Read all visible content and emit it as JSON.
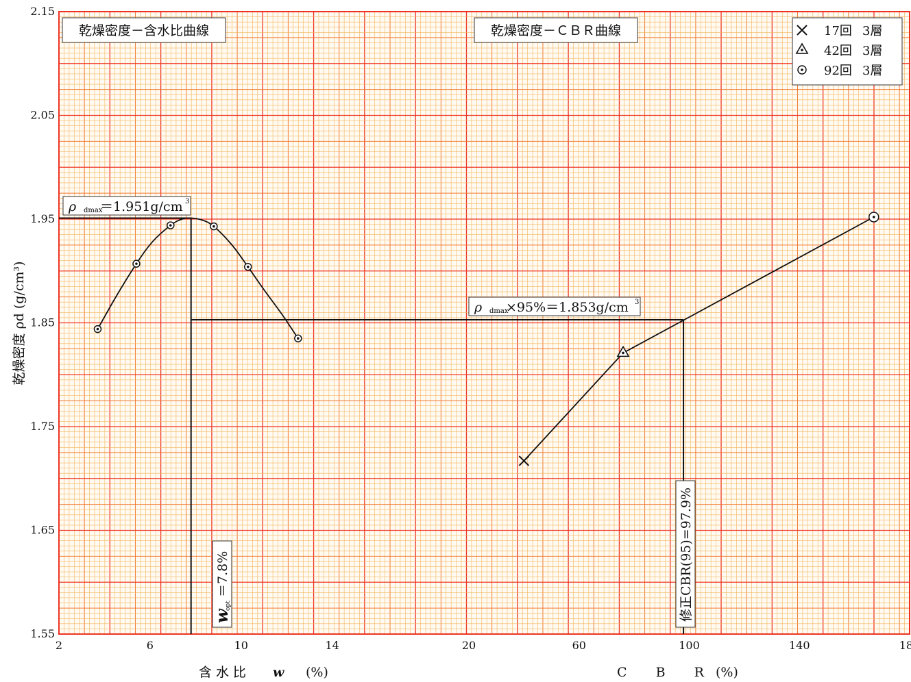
{
  "chart_data": {
    "type": "line",
    "y_axis": {
      "label": "乾燥密度 ρd (g/cm³)",
      "range": [
        1.55,
        2.15
      ],
      "tick_labels": [
        "2.15",
        "2.05",
        "1.95",
        "1.85",
        "1.75",
        "1.65",
        "1.55"
      ],
      "ticks": [
        2.15,
        2.05,
        1.95,
        1.85,
        1.75,
        1.65,
        1.55
      ]
    },
    "x_axis_moisture": {
      "label": "含水比",
      "label_symbol": "w",
      "unit": "(%)",
      "range": [
        2,
        20
      ],
      "tick_labels": [
        "2",
        "6",
        "10",
        "14",
        "20"
      ],
      "ticks": [
        2,
        6,
        10,
        14,
        20
      ]
    },
    "x_axis_cbr": {
      "label": "C B R",
      "unit": "(%)",
      "range": [
        20,
        180
      ],
      "tick_labels": [
        "60",
        "100",
        "140",
        "180"
      ],
      "ticks": [
        60,
        100,
        140,
        180
      ]
    },
    "grid": true,
    "compaction_curve": {
      "title": "乾燥密度－含水比曲線",
      "marker": "dotted-circle",
      "points": [
        {
          "w": 3.7,
          "rho": 1.844
        },
        {
          "w": 5.4,
          "rho": 1.907
        },
        {
          "w": 6.9,
          "rho": 1.944
        },
        {
          "w": 8.8,
          "rho": 1.943
        },
        {
          "w": 10.3,
          "rho": 1.904
        },
        {
          "w": 12.5,
          "rho": 1.835
        }
      ],
      "smooth_curve": [
        [
          3.7,
          1.844
        ],
        [
          4.5,
          1.875
        ],
        [
          5.4,
          1.907
        ],
        [
          6.1,
          1.928
        ],
        [
          6.9,
          1.944
        ],
        [
          7.4,
          1.95
        ],
        [
          7.8,
          1.951
        ],
        [
          8.3,
          1.949
        ],
        [
          8.8,
          1.943
        ],
        [
          9.6,
          1.925
        ],
        [
          10.3,
          1.904
        ],
        [
          11.0,
          1.882
        ],
        [
          11.8,
          1.858
        ],
        [
          12.5,
          1.835
        ]
      ]
    },
    "cbr_curve": {
      "title": "乾燥密度－ＣＢＲ曲線",
      "points": [
        {
          "series": "17回 3層",
          "cbr": 40,
          "rho": 1.717,
          "marker": "x"
        },
        {
          "series": "42回 3層",
          "cbr": 76,
          "rho": 1.821,
          "marker": "triangle"
        },
        {
          "series": "92回 3層",
          "cbr": 167,
          "rho": 1.952,
          "marker": "dotted-circle"
        }
      ]
    },
    "legend": {
      "position": "top-right",
      "entries": [
        {
          "marker": "x",
          "count": "17回",
          "layers": "3層"
        },
        {
          "marker": "triangle",
          "count": "42回",
          "layers": "3層"
        },
        {
          "marker": "dotted-circle",
          "count": "92回",
          "layers": "3層"
        }
      ]
    },
    "annotations": {
      "rho_dmax": {
        "symbol": "ρ",
        "sub": "dmax",
        "text": "＝1.951g/cm",
        "sup": "3",
        "value": 1.951
      },
      "rho_95": {
        "symbol": "ρ",
        "sub": "dmax",
        "text": "×95%＝1.853g/cm",
        "sup": "3",
        "value": 1.853
      },
      "w_opt": {
        "symbol": "w",
        "sub": "opt",
        "text": "＝7.8%",
        "value": 7.8
      },
      "cbr_95": {
        "text": "修正CBR(95)=97.9%",
        "value": 97.9
      }
    },
    "colors": {
      "grid_major": "#ee3322",
      "grid_mid": "#f07a30",
      "grid_minor": "#f4b55a",
      "line": "#111111"
    }
  }
}
